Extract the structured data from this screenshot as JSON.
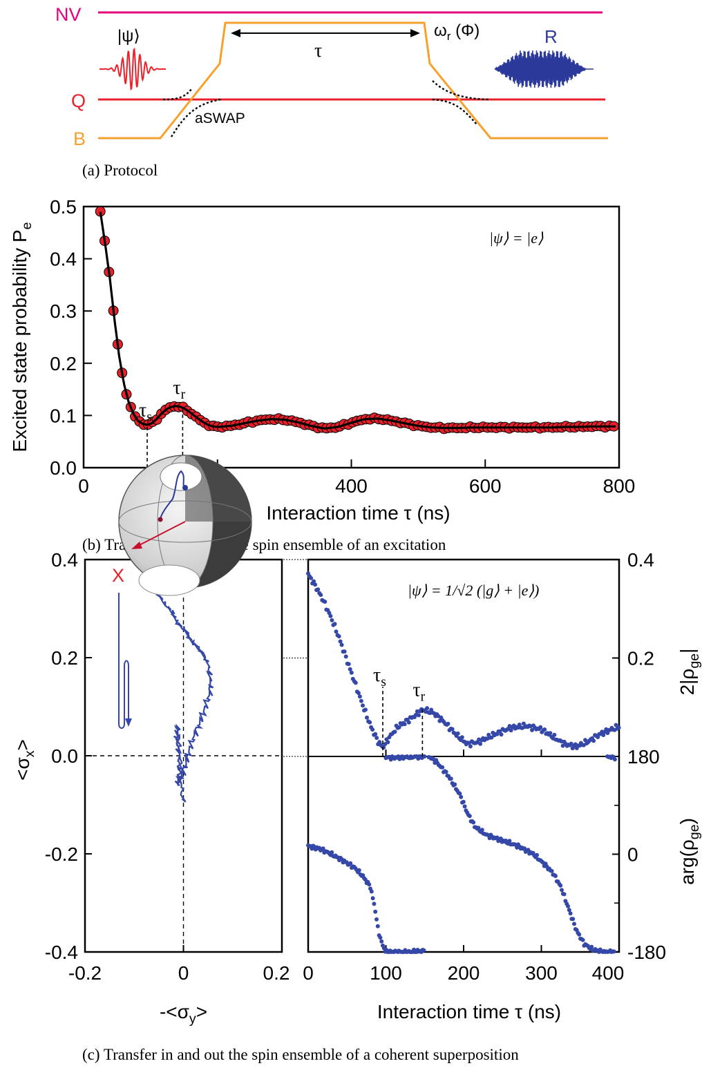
{
  "colors": {
    "nv": "#e6007e",
    "qubit": "#e8202a",
    "bus": "#f7a02c",
    "readout": "#2b3a9a",
    "data_fill": "#e8202a",
    "data_points": "#3548a8",
    "fit": "#000000"
  },
  "protocol": {
    "line_nv": "NV",
    "line_q": "Q",
    "line_b": "B",
    "psi": "|ψ⟩",
    "tau": "τ",
    "omega_base": "ω",
    "omega_sub": "r",
    "omega_tail": " (Φ)",
    "readout": "R",
    "aswap": "aSWAP",
    "caption": "(a) Protocol"
  },
  "chart_data": [
    {
      "type": "scatter",
      "panel": "b",
      "title": "",
      "xlabel": "Interaction time τ (ns)",
      "ylabel_main": "Excited state probability P",
      "ylabel_sub": "e",
      "xlim": [
        0,
        800
      ],
      "ylim": [
        0,
        0.5
      ],
      "xticks": [
        "0",
        "200",
        "400",
        "600",
        "800"
      ],
      "yticks": [
        "0.0",
        "0.1",
        "0.2",
        "0.3",
        "0.4",
        "0.5"
      ],
      "xtick_values": [
        0,
        200,
        400,
        600,
        800
      ],
      "ytick_values": [
        0,
        0.1,
        0.2,
        0.3,
        0.4,
        0.5
      ],
      "annotation": "|ψ⟩ = |e⟩",
      "markers": [
        {
          "label": "τ",
          "sub": "s",
          "x": 95,
          "y": 0.083
        },
        {
          "label": "τ",
          "sub": "r",
          "x": 148,
          "y": 0.118
        }
      ],
      "series": [
        {
          "kind": "points+fit",
          "x": [
            25,
            32,
            39,
            46,
            53,
            60,
            67,
            74,
            81,
            88,
            95,
            102,
            109,
            116,
            123,
            130,
            137,
            144,
            151,
            158,
            165,
            172,
            179,
            186,
            193,
            200,
            220,
            240,
            260,
            280,
            300,
            320,
            340,
            360,
            380,
            400,
            420,
            440,
            460,
            480,
            500,
            520,
            540,
            560,
            580,
            600,
            620,
            640,
            660,
            680,
            700,
            720,
            740,
            760,
            780,
            795
          ],
          "y": [
            0.49,
            0.43,
            0.365,
            0.285,
            0.215,
            0.162,
            0.127,
            0.104,
            0.09,
            0.084,
            0.082,
            0.085,
            0.093,
            0.103,
            0.111,
            0.116,
            0.118,
            0.117,
            0.113,
            0.107,
            0.1,
            0.093,
            0.087,
            0.082,
            0.079,
            0.078,
            0.08,
            0.085,
            0.09,
            0.093,
            0.092,
            0.087,
            0.08,
            0.075,
            0.078,
            0.086,
            0.093,
            0.094,
            0.09,
            0.085,
            0.08,
            0.077,
            0.076,
            0.076,
            0.077,
            0.077,
            0.077,
            0.077,
            0.077,
            0.077,
            0.077,
            0.078,
            0.078,
            0.079,
            0.079,
            0.079
          ]
        }
      ],
      "caption": "(b) Transfer in and out the spin ensemble of an excitation"
    },
    {
      "type": "line",
      "panel": "c-left",
      "title": "",
      "xlabel": "-<σ",
      "xlabel_sub": "y",
      "xlabel_tail": ">",
      "ylabel": "<σ",
      "ylabel_sub": "x",
      "ylabel_tail": ">",
      "xlim": [
        -0.2,
        0.2
      ],
      "ylim": [
        -0.4,
        0.4
      ],
      "xticks": [
        "-0.2",
        "0",
        "0.2"
      ],
      "yticks": [
        "-0.4",
        "-0.2",
        "0.0",
        "0.2",
        "0.4"
      ],
      "xtick_values": [
        -0.2,
        0,
        0.2
      ],
      "ytick_values": [
        -0.4,
        -0.2,
        0,
        0.2,
        0.4
      ],
      "trajectory": {
        "x": [
          -0.073,
          -0.055,
          -0.038,
          -0.02,
          -0.012,
          0.005,
          0.012,
          0.025,
          0.038,
          0.05,
          0.055,
          0.055,
          0.045,
          0.035,
          0.022,
          0.012,
          0.005,
          -0.005,
          -0.012,
          -0.008,
          -0.01,
          -0.015,
          -0.012,
          -0.008,
          -0.005,
          0
        ],
        "y": [
          0.36,
          0.335,
          0.31,
          0.29,
          0.27,
          0.255,
          0.24,
          0.225,
          0.21,
          0.19,
          0.16,
          0.13,
          0.1,
          0.07,
          0.04,
          0.01,
          -0.02,
          -0.045,
          -0.06,
          -0.03,
          0.01,
          0.04,
          0.06,
          0.02,
          -0.05,
          -0.1
        ]
      },
      "sphere_axis_label": "X",
      "caption": "(c) Transfer in and out the spin ensemble of a coherent superposition"
    },
    {
      "type": "scatter",
      "panel": "c-right-top",
      "title": "",
      "ylabel": "2|ρ",
      "ylabel_sub": "ge",
      "ylabel_tail": "|",
      "xlim": [
        0,
        400
      ],
      "ylim": [
        0,
        0.4
      ],
      "yticks": [
        "0.2",
        "0.4"
      ],
      "ytick_values": [
        0.2,
        0.4
      ],
      "annotation": "|ψ⟩ = 1/√2 (|g⟩ + |e⟩)",
      "markers": [
        {
          "label": "τ",
          "sub": "s",
          "x": 96,
          "y": 0.018
        },
        {
          "label": "τ",
          "sub": "r",
          "x": 147,
          "y": 0.095
        }
      ],
      "series": [
        {
          "x": [
            0,
            10,
            20,
            30,
            40,
            50,
            60,
            70,
            80,
            90,
            96,
            105,
            115,
            125,
            135,
            147,
            160,
            175,
            190,
            205,
            220,
            240,
            260,
            280,
            300,
            315,
            330,
            345,
            360,
            375,
            390,
            400
          ],
          "y": [
            0.37,
            0.345,
            0.315,
            0.28,
            0.24,
            0.195,
            0.15,
            0.105,
            0.063,
            0.03,
            0.018,
            0.04,
            0.06,
            0.07,
            0.08,
            0.095,
            0.09,
            0.07,
            0.045,
            0.025,
            0.03,
            0.045,
            0.058,
            0.062,
            0.055,
            0.04,
            0.025,
            0.02,
            0.03,
            0.045,
            0.055,
            0.06
          ]
        }
      ]
    },
    {
      "type": "scatter",
      "panel": "c-right-bottom",
      "title": "",
      "xlabel": "Interaction time τ (ns)",
      "ylabel": "arg(ρ",
      "ylabel_sub": "ge",
      "ylabel_tail": ")",
      "xlim": [
        0,
        400
      ],
      "ylim": [
        -180,
        180
      ],
      "xticks": [
        "0",
        "100",
        "200",
        "300",
        "400"
      ],
      "yticks": [
        "180",
        "0",
        "-180"
      ],
      "xtick_values": [
        0,
        100,
        200,
        300,
        400
      ],
      "ytick_values": [
        180,
        0,
        -180
      ],
      "series": [
        {
          "x": [
            0,
            15,
            30,
            45,
            60,
            70,
            80,
            86,
            90,
            95,
            100,
            110,
            130,
            150
          ],
          "y": [
            15,
            10,
            0,
            -12,
            -25,
            -40,
            -60,
            -100,
            -140,
            -165,
            -180,
            -180,
            -180,
            -178
          ]
        },
        {
          "x": [
            100,
            115,
            130,
            150
          ],
          "y": [
            178,
            178,
            179,
            180
          ]
        },
        {
          "x": [
            155,
            165,
            180,
            195,
            205,
            215,
            230,
            250,
            270,
            290,
            305,
            315,
            325,
            335,
            345,
            355,
            365,
            380,
            395
          ],
          "y": [
            180,
            170,
            145,
            110,
            75,
            50,
            35,
            25,
            15,
            0,
            -20,
            -35,
            -60,
            -100,
            -140,
            -165,
            -175,
            -180,
            -180
          ]
        },
        {
          "x": [
            385,
            395
          ],
          "y": [
            180,
            178
          ]
        }
      ]
    }
  ]
}
